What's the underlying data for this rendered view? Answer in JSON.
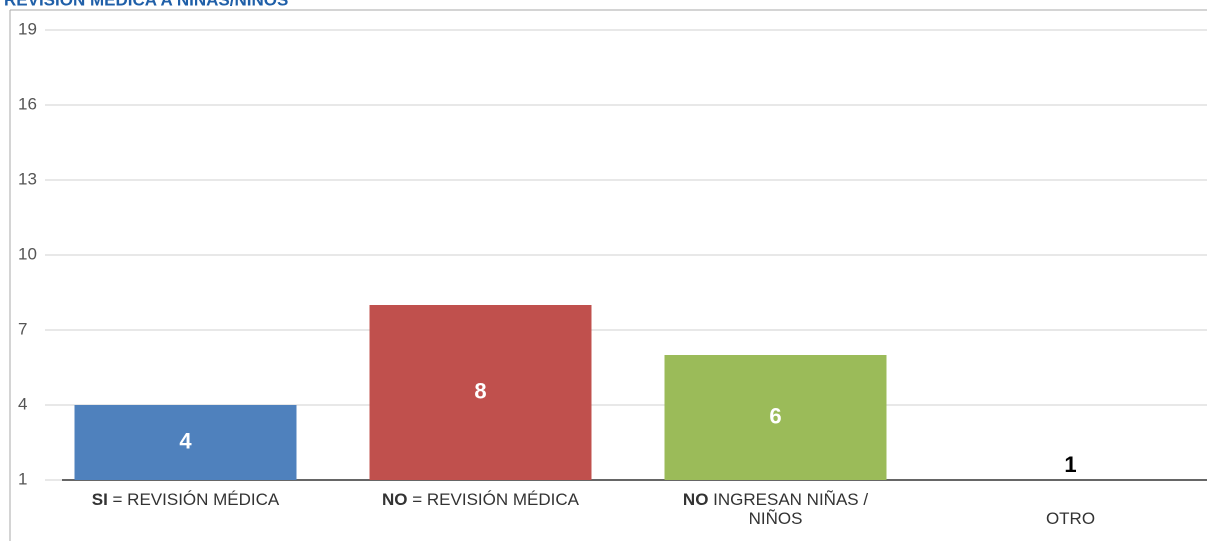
{
  "chart_data": {
    "type": "bar",
    "title": "REVISIÓN MÉDICA A NIÑAS/NIÑOS",
    "categories": [
      {
        "bold": "SI",
        "text": "= REVISIÓN MÉDICA"
      },
      {
        "bold": "NO",
        "text": "= REVISIÓN MÉDICA"
      },
      {
        "bold": "NO",
        "text": "INGRESAN NIÑAS / NIÑOS"
      },
      {
        "text": "OTRO"
      }
    ],
    "values": [
      4,
      8,
      6,
      1
    ],
    "colors": [
      "#4f81bd",
      "#c0504d",
      "#9bbb59",
      "#8064a2"
    ],
    "ylim": [
      1,
      19
    ],
    "yticks": [
      1,
      4,
      7,
      10,
      13,
      16,
      19
    ],
    "grid": true
  }
}
